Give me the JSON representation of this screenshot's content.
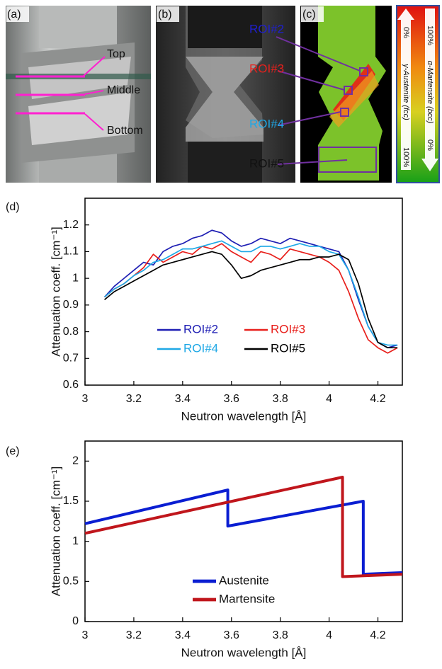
{
  "images": {
    "a": {
      "label": "(a)",
      "annotations": [
        "Top",
        "Middle",
        "Bottom"
      ]
    },
    "b": {
      "label": "(b)"
    },
    "c": {
      "label": "(c)",
      "rois": [
        "ROI#2",
        "ROI#3",
        "ROI#4",
        "ROI#5"
      ]
    },
    "colorbar": {
      "austenite_top": "0%",
      "austenite_bottom": "100%",
      "austenite_label": "γ-Austenite (fcc)",
      "martensite_top": "100%",
      "martensite_bottom": "0%",
      "martensite_label": "α-Martensite (bcc)"
    }
  },
  "chart_data": [
    {
      "type": "line",
      "label": "(d)",
      "x_label": "Neutron wavelength [Å]",
      "y_label": "Attenuation coeff. [cm⁻¹]",
      "x": [
        3.08,
        3.12,
        3.16,
        3.2,
        3.24,
        3.28,
        3.32,
        3.36,
        3.4,
        3.44,
        3.48,
        3.52,
        3.56,
        3.6,
        3.64,
        3.68,
        3.72,
        3.76,
        3.8,
        3.84,
        3.88,
        3.92,
        3.96,
        4.0,
        4.04,
        4.08,
        4.12,
        4.16,
        4.2,
        4.24,
        4.28
      ],
      "series": [
        {
          "name": "ROI#2",
          "color": "#1f1fb4",
          "values": [
            0.93,
            0.97,
            1.0,
            1.03,
            1.06,
            1.05,
            1.1,
            1.12,
            1.13,
            1.15,
            1.16,
            1.18,
            1.17,
            1.14,
            1.12,
            1.13,
            1.15,
            1.14,
            1.13,
            1.15,
            1.14,
            1.13,
            1.12,
            1.11,
            1.1,
            1.03,
            0.92,
            0.82,
            0.76,
            0.74,
            0.75
          ]
        },
        {
          "name": "ROI#3",
          "color": "#e8201c",
          "values": [
            0.93,
            0.96,
            0.98,
            1.01,
            1.04,
            1.09,
            1.06,
            1.08,
            1.1,
            1.09,
            1.12,
            1.11,
            1.13,
            1.1,
            1.08,
            1.06,
            1.1,
            1.09,
            1.07,
            1.11,
            1.1,
            1.09,
            1.08,
            1.06,
            1.03,
            0.95,
            0.85,
            0.77,
            0.74,
            0.72,
            0.74
          ]
        },
        {
          "name": "ROI#4",
          "color": "#1ea8e6",
          "values": [
            0.93,
            0.96,
            0.98,
            1.01,
            1.03,
            1.06,
            1.07,
            1.09,
            1.11,
            1.11,
            1.12,
            1.13,
            1.14,
            1.12,
            1.1,
            1.1,
            1.12,
            1.12,
            1.11,
            1.12,
            1.13,
            1.12,
            1.12,
            1.1,
            1.09,
            1.03,
            0.93,
            0.82,
            0.76,
            0.75,
            0.75
          ]
        },
        {
          "name": "ROI#5",
          "color": "#000000",
          "values": [
            0.92,
            0.95,
            0.97,
            0.99,
            1.01,
            1.03,
            1.05,
            1.06,
            1.07,
            1.08,
            1.09,
            1.1,
            1.09,
            1.05,
            1.0,
            1.01,
            1.03,
            1.04,
            1.05,
            1.06,
            1.07,
            1.07,
            1.08,
            1.08,
            1.09,
            1.07,
            0.98,
            0.85,
            0.76,
            0.74,
            0.74
          ]
        }
      ],
      "xlim": [
        3,
        4.3
      ],
      "xticks": [
        3,
        3.2,
        3.4,
        3.6,
        3.8,
        4,
        4.2
      ],
      "ylim": [
        0.6,
        1.3
      ],
      "yticks": [
        0.6,
        0.7,
        0.8,
        0.9,
        1,
        1.1,
        1.2
      ]
    },
    {
      "type": "line",
      "label": "(e)",
      "x_label": "Neutron wavelength [Å]",
      "y_label": "Attenuation coeff. [cm⁻¹]",
      "series": [
        {
          "name": "Austenite",
          "color": "#0a1ed2",
          "x": [
            3,
            3.585,
            3.585,
            4.14,
            4.14,
            4.3
          ],
          "values": [
            1.22,
            1.64,
            1.19,
            1.5,
            0.59,
            0.61
          ]
        },
        {
          "name": "Martensite",
          "color": "#c0161c",
          "x": [
            3,
            4.055,
            4.055,
            4.3
          ],
          "values": [
            1.1,
            1.8,
            0.56,
            0.59
          ]
        }
      ],
      "xlim": [
        3,
        4.3
      ],
      "xticks": [
        3,
        3.2,
        3.4,
        3.6,
        3.8,
        4,
        4.2
      ],
      "ylim": [
        0,
        2.25
      ],
      "yticks": [
        0,
        0.5,
        1,
        1.5,
        2
      ]
    }
  ]
}
